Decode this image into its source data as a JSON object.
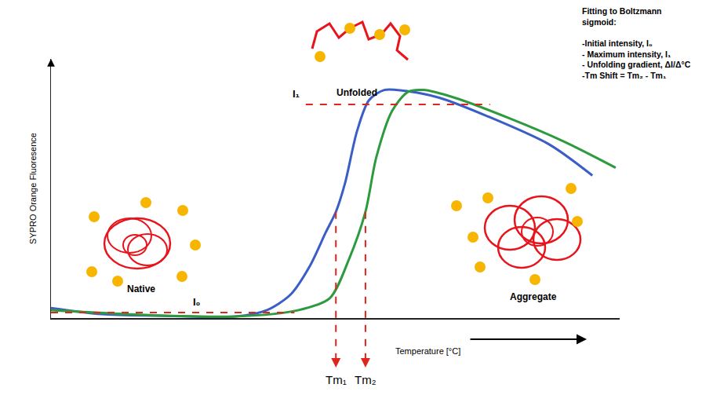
{
  "chart_data": {
    "type": "line",
    "x_label": "Temperature [°C]",
    "y_label": "SYPRO Orange Fluoresence",
    "xlim": [
      0,
      100
    ],
    "ylim": [
      0,
      100
    ],
    "tick_labels": false,
    "grid": false,
    "series": [
      {
        "color": "#3b5ec6",
        "line_style": "solid",
        "x": [
          0,
          9,
          18.6,
          32.4,
          37.9,
          42.1,
          45.5,
          48.3,
          50.1,
          51.7,
          53.8,
          55.9,
          58.6,
          62.8,
          68.3,
          76.6,
          87.6,
          95.2
        ],
        "values": [
          3.9,
          1.5,
          0.9,
          0.6,
          3,
          9,
          20,
          33,
          41,
          52,
          72,
          84,
          88,
          87.5,
          85,
          78,
          67,
          55
        ]
      },
      {
        "color": "#2e9a3e",
        "line_style": "solid",
        "x": [
          0,
          18.6,
          32.4,
          43.4,
          49,
          52.4,
          55.3,
          57.2,
          60,
          62.8,
          65.5,
          71,
          80.7,
          90.3,
          99.3
        ],
        "values": [
          3,
          1,
          0.6,
          3,
          7.6,
          22.7,
          41,
          62,
          80,
          87.3,
          88,
          85,
          77,
          68,
          58
        ]
      }
    ],
    "states": [
      {
        "label": "Native"
      },
      {
        "label": "Unfolded"
      },
      {
        "label": "Aggregate"
      }
    ],
    "levels": [
      {
        "label": "I₀",
        "value": 2.1,
        "x": [
          0,
          42.8
        ]
      },
      {
        "label": "I₁",
        "value": 82.4,
        "x": [
          44.8,
          77.2
        ]
      }
    ],
    "tm": [
      {
        "label": "Tm₁",
        "value": 50.1,
        "y": 41
      },
      {
        "label": "Tm₂",
        "value": 55.3,
        "y": 41
      }
    ],
    "fit_box": {
      "heading": "Fitting to Boltzmann sigmoid:",
      "items": [
        "-Initial intensity, I₀",
        "- Maximum intensity, I₁",
        "- Unfolding gradient, ΔI/Δ°C",
        "-Tm Shift = Tm₂ - Tm₁"
      ]
    }
  }
}
